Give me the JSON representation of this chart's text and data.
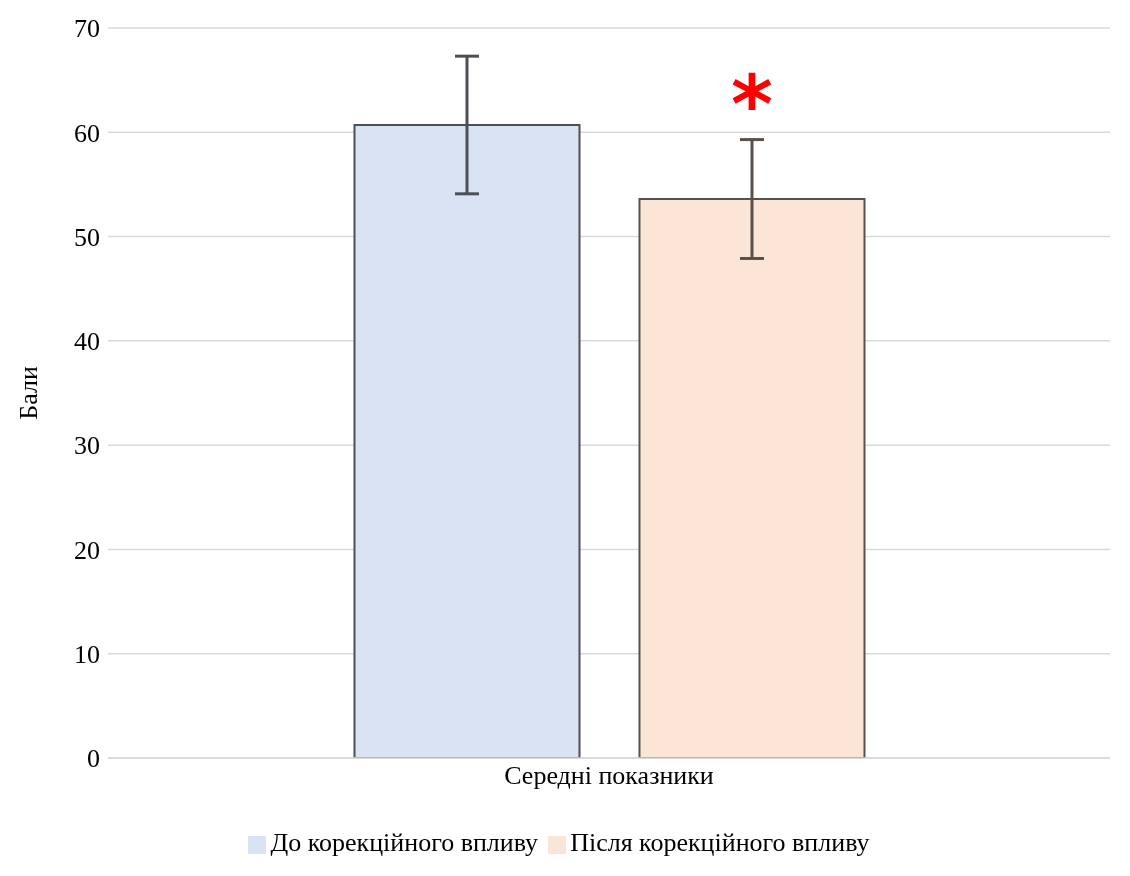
{
  "chart_data": {
    "type": "bar",
    "ylabel": "Бали",
    "categories": [
      "Середні показники"
    ],
    "series": [
      {
        "name": "До корекційного впливу",
        "color": "#dae3f3",
        "values": [
          60.7
        ],
        "errors": [
          6.6
        ]
      },
      {
        "name": "Після корекційного впливу",
        "color": "#fbe5d6",
        "values": [
          53.6
        ],
        "errors": [
          5.7
        ]
      }
    ],
    "ylim": [
      0,
      70
    ],
    "yticks": [
      0,
      10,
      20,
      30,
      40,
      50,
      60,
      70
    ],
    "grid": "y",
    "legend": "bottom",
    "annotations": [
      "*"
    ]
  }
}
